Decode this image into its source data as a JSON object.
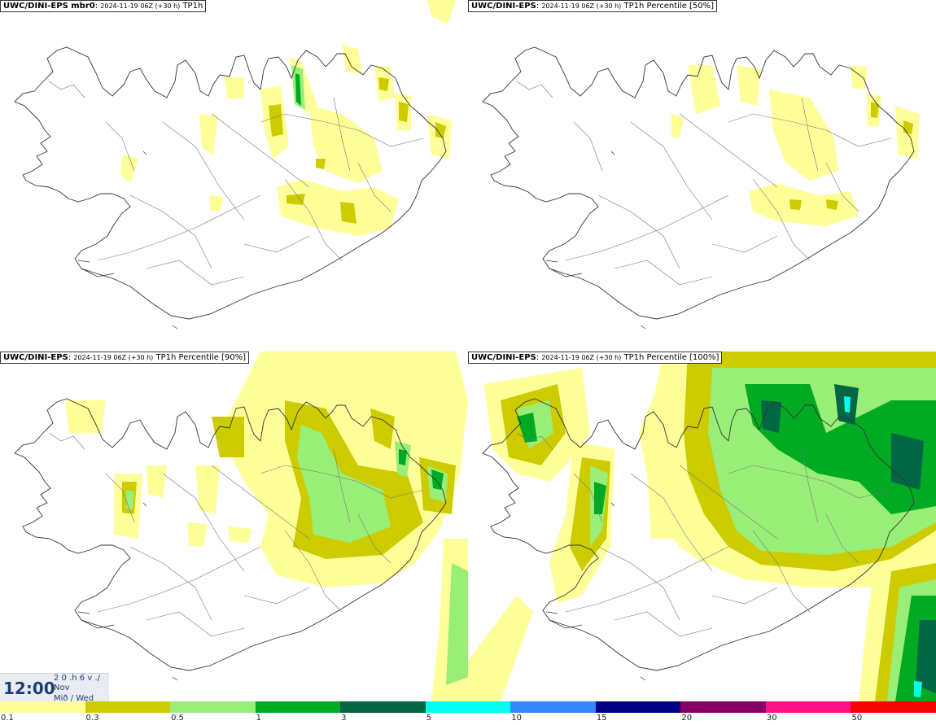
{
  "panels": [
    {
      "model": "UWC/DINI-EPS mbr0",
      "run": "2024-11-19 06Z (+30 h)",
      "param": "TP1h"
    },
    {
      "model": "UWC/DINI-EPS",
      "run": "2024-11-19 06Z (+30 h)",
      "param": "TP1h Percentile [50%]"
    },
    {
      "model": "UWC/DINI-EPS",
      "run": "2024-11-19 06Z (+30 h)",
      "param": "TP1h Percentile [90%]"
    },
    {
      "model": "UWC/DINI-EPS",
      "run": "2024-11-19 06Z (+30 h)",
      "param": "TP1h Percentile [100%]"
    }
  ],
  "time": {
    "clock": "12:00",
    "line1": "2 0 .h 6 v ./",
    "line2": "Nov",
    "line3": "Mið / Wed"
  },
  "legend": {
    "colors": [
      "#ffff99",
      "#cccc00",
      "#99ee77",
      "#00aa22",
      "#006644",
      "#00ffee",
      "#3388ff",
      "#000088",
      "#880066",
      "#ff1188",
      "#ff0000"
    ],
    "ticks": [
      "0.1",
      "0.3",
      "0.5",
      "1",
      "3",
      "5",
      "10",
      "15",
      "20",
      "30",
      "50"
    ]
  }
}
